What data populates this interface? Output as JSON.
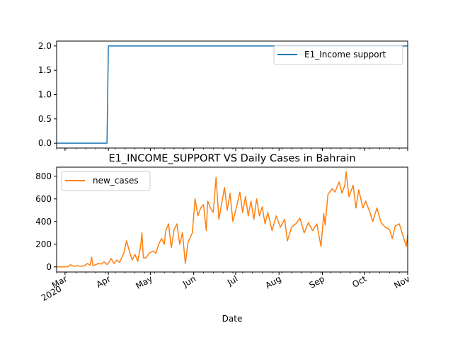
{
  "chart_data": [
    {
      "type": "line",
      "title": "",
      "xlabel": "",
      "ylabel": "",
      "ylim": [
        -0.1,
        2.1
      ],
      "yticks": [
        "0.0",
        "0.5",
        "1.0",
        "1.5",
        "2.0"
      ],
      "ytick_values": [
        0.0,
        0.5,
        1.0,
        1.5,
        2.0
      ],
      "legend_position": "top-right",
      "grid": false,
      "series": [
        {
          "name": "E1_Income support",
          "color": "#1f77b4",
          "points": [
            {
              "x": "2020-02-24",
              "y": 0
            },
            {
              "x": "2020-03-31",
              "y": 0
            },
            {
              "x": "2020-04-01",
              "y": 2
            },
            {
              "x": "2020-11-01",
              "y": 2
            }
          ]
        }
      ]
    },
    {
      "type": "line",
      "title": "E1_INCOME_SUPPORT VS Daily Cases in Bahrain",
      "xlabel": "Date",
      "ylabel": "",
      "ylim": [
        -45,
        880
      ],
      "yticks": [
        "0",
        "200",
        "400",
        "600",
        "800"
      ],
      "ytick_values": [
        0,
        200,
        400,
        600,
        800
      ],
      "xlim": [
        "2020-02-24",
        "2020-11-01"
      ],
      "xticks": [
        {
          "date": "2020-03-01",
          "label": "Mar",
          "sublabel": "2020"
        },
        {
          "date": "2020-04-01",
          "label": "Apr"
        },
        {
          "date": "2020-05-01",
          "label": "May"
        },
        {
          "date": "2020-06-01",
          "label": "Jun"
        },
        {
          "date": "2020-07-01",
          "label": "Jul"
        },
        {
          "date": "2020-08-01",
          "label": "Aug"
        },
        {
          "date": "2020-09-01",
          "label": "Sep"
        },
        {
          "date": "2020-10-01",
          "label": "Oct"
        },
        {
          "date": "2020-11-01",
          "label": "Nov"
        }
      ],
      "legend_position": "top-left",
      "grid": false,
      "series": [
        {
          "name": "new_cases",
          "color": "#ff7f0e",
          "points": [
            {
              "x": "2020-02-24",
              "y": 0
            },
            {
              "x": "2020-02-28",
              "y": 0
            },
            {
              "x": "2020-03-03",
              "y": 0
            },
            {
              "x": "2020-03-05",
              "y": 20
            },
            {
              "x": "2020-03-07",
              "y": 5
            },
            {
              "x": "2020-03-10",
              "y": 10
            },
            {
              "x": "2020-03-13",
              "y": 5
            },
            {
              "x": "2020-03-15",
              "y": 12
            },
            {
              "x": "2020-03-17",
              "y": 30
            },
            {
              "x": "2020-03-19",
              "y": 15
            },
            {
              "x": "2020-03-20",
              "y": 85
            },
            {
              "x": "2020-03-21",
              "y": 10
            },
            {
              "x": "2020-03-23",
              "y": 20
            },
            {
              "x": "2020-03-25",
              "y": 30
            },
            {
              "x": "2020-03-27",
              "y": 25
            },
            {
              "x": "2020-03-29",
              "y": 45
            },
            {
              "x": "2020-03-31",
              "y": 20
            },
            {
              "x": "2020-04-02",
              "y": 50
            },
            {
              "x": "2020-04-03",
              "y": 75
            },
            {
              "x": "2020-04-05",
              "y": 30
            },
            {
              "x": "2020-04-07",
              "y": 60
            },
            {
              "x": "2020-04-09",
              "y": 40
            },
            {
              "x": "2020-04-12",
              "y": 120
            },
            {
              "x": "2020-04-14",
              "y": 230
            },
            {
              "x": "2020-04-16",
              "y": 140
            },
            {
              "x": "2020-04-18",
              "y": 60
            },
            {
              "x": "2020-04-20",
              "y": 110
            },
            {
              "x": "2020-04-22",
              "y": 50
            },
            {
              "x": "2020-04-24",
              "y": 180
            },
            {
              "x": "2020-04-25",
              "y": 300
            },
            {
              "x": "2020-04-26",
              "y": 80
            },
            {
              "x": "2020-04-28",
              "y": 80
            },
            {
              "x": "2020-04-30",
              "y": 120
            },
            {
              "x": "2020-05-03",
              "y": 140
            },
            {
              "x": "2020-05-05",
              "y": 120
            },
            {
              "x": "2020-05-07",
              "y": 200
            },
            {
              "x": "2020-05-09",
              "y": 250
            },
            {
              "x": "2020-05-11",
              "y": 200
            },
            {
              "x": "2020-05-12",
              "y": 320
            },
            {
              "x": "2020-05-14",
              "y": 380
            },
            {
              "x": "2020-05-16",
              "y": 170
            },
            {
              "x": "2020-05-18",
              "y": 330
            },
            {
              "x": "2020-05-20",
              "y": 380
            },
            {
              "x": "2020-05-22",
              "y": 200
            },
            {
              "x": "2020-05-24",
              "y": 300
            },
            {
              "x": "2020-05-26",
              "y": 30
            },
            {
              "x": "2020-05-28",
              "y": 220
            },
            {
              "x": "2020-05-31",
              "y": 300
            },
            {
              "x": "2020-06-02",
              "y": 600
            },
            {
              "x": "2020-06-04",
              "y": 450
            },
            {
              "x": "2020-06-06",
              "y": 520
            },
            {
              "x": "2020-06-08",
              "y": 550
            },
            {
              "x": "2020-06-10",
              "y": 320
            },
            {
              "x": "2020-06-11",
              "y": 580
            },
            {
              "x": "2020-06-13",
              "y": 520
            },
            {
              "x": "2020-06-15",
              "y": 480
            },
            {
              "x": "2020-06-17",
              "y": 790
            },
            {
              "x": "2020-06-19",
              "y": 420
            },
            {
              "x": "2020-06-21",
              "y": 560
            },
            {
              "x": "2020-06-23",
              "y": 700
            },
            {
              "x": "2020-06-25",
              "y": 500
            },
            {
              "x": "2020-06-27",
              "y": 650
            },
            {
              "x": "2020-06-29",
              "y": 400
            },
            {
              "x": "2020-07-02",
              "y": 550
            },
            {
              "x": "2020-07-04",
              "y": 660
            },
            {
              "x": "2020-07-06",
              "y": 480
            },
            {
              "x": "2020-07-08",
              "y": 620
            },
            {
              "x": "2020-07-10",
              "y": 450
            },
            {
              "x": "2020-07-12",
              "y": 580
            },
            {
              "x": "2020-07-14",
              "y": 420
            },
            {
              "x": "2020-07-16",
              "y": 600
            },
            {
              "x": "2020-07-18",
              "y": 450
            },
            {
              "x": "2020-07-20",
              "y": 530
            },
            {
              "x": "2020-07-22",
              "y": 380
            },
            {
              "x": "2020-07-24",
              "y": 480
            },
            {
              "x": "2020-07-27",
              "y": 320
            },
            {
              "x": "2020-07-30",
              "y": 450
            },
            {
              "x": "2020-08-02",
              "y": 350
            },
            {
              "x": "2020-08-05",
              "y": 420
            },
            {
              "x": "2020-08-07",
              "y": 230
            },
            {
              "x": "2020-08-10",
              "y": 350
            },
            {
              "x": "2020-08-13",
              "y": 380
            },
            {
              "x": "2020-08-16",
              "y": 430
            },
            {
              "x": "2020-08-19",
              "y": 300
            },
            {
              "x": "2020-08-22",
              "y": 390
            },
            {
              "x": "2020-08-25",
              "y": 320
            },
            {
              "x": "2020-08-28",
              "y": 380
            },
            {
              "x": "2020-08-31",
              "y": 180
            },
            {
              "x": "2020-09-02",
              "y": 470
            },
            {
              "x": "2020-09-03",
              "y": 370
            },
            {
              "x": "2020-09-05",
              "y": 640
            },
            {
              "x": "2020-09-08",
              "y": 690
            },
            {
              "x": "2020-09-10",
              "y": 660
            },
            {
              "x": "2020-09-13",
              "y": 750
            },
            {
              "x": "2020-09-15",
              "y": 650
            },
            {
              "x": "2020-09-17",
              "y": 720
            },
            {
              "x": "2020-09-18",
              "y": 840
            },
            {
              "x": "2020-09-20",
              "y": 620
            },
            {
              "x": "2020-09-23",
              "y": 720
            },
            {
              "x": "2020-09-25",
              "y": 520
            },
            {
              "x": "2020-09-27",
              "y": 680
            },
            {
              "x": "2020-09-30",
              "y": 520
            },
            {
              "x": "2020-10-02",
              "y": 580
            },
            {
              "x": "2020-10-05",
              "y": 480
            },
            {
              "x": "2020-10-07",
              "y": 400
            },
            {
              "x": "2020-10-10",
              "y": 520
            },
            {
              "x": "2020-10-13",
              "y": 390
            },
            {
              "x": "2020-10-16",
              "y": 350
            },
            {
              "x": "2020-10-19",
              "y": 330
            },
            {
              "x": "2020-10-21",
              "y": 250
            },
            {
              "x": "2020-10-23",
              "y": 360
            },
            {
              "x": "2020-10-26",
              "y": 380
            },
            {
              "x": "2020-10-28",
              "y": 300
            },
            {
              "x": "2020-10-31",
              "y": 180
            },
            {
              "x": "2020-11-01",
              "y": 280
            }
          ]
        }
      ]
    }
  ]
}
